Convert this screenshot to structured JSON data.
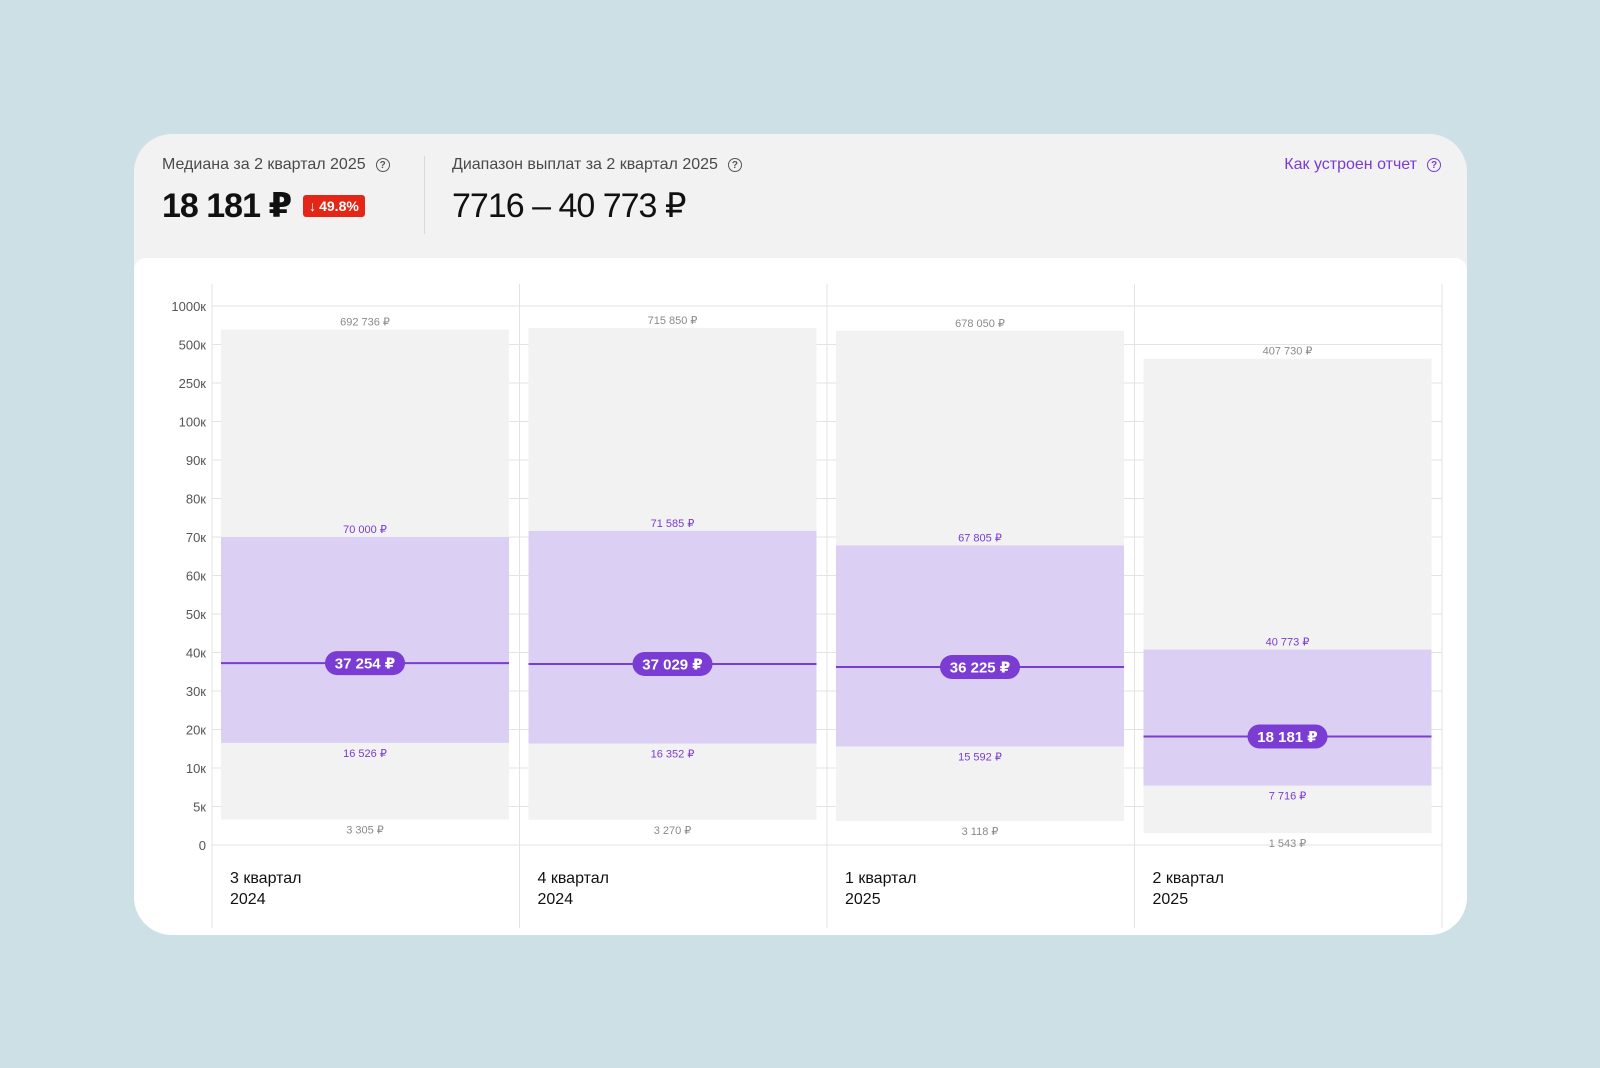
{
  "header": {
    "median_label": "Медиана за 2 квартал 2025",
    "median_value": "18 181 ₽",
    "median_change": "49.8%",
    "change_direction_icon": "arrow-down-icon",
    "range_label": "Диапазон выплат за 2 квартал 2025",
    "range_value": "7716 – 40 773 ₽",
    "help_link": "Как устроен отчет"
  },
  "colors": {
    "background": "#cce0e6",
    "accent": "#7a3cd2",
    "badge_negative": "#e42617",
    "interquartile_fill": "#dccff4",
    "full_range_fill": "#f2f2f2"
  },
  "chart_data": {
    "type": "range-bar",
    "y_scale": "piecewise",
    "y_ticks": [
      {
        "label": "0",
        "value": 0
      },
      {
        "label": "5к",
        "value": 5000
      },
      {
        "label": "10к",
        "value": 10000
      },
      {
        "label": "20к",
        "value": 20000
      },
      {
        "label": "30к",
        "value": 30000
      },
      {
        "label": "40к",
        "value": 40000
      },
      {
        "label": "50к",
        "value": 50000
      },
      {
        "label": "60к",
        "value": 60000
      },
      {
        "label": "70к",
        "value": 70000
      },
      {
        "label": "80к",
        "value": 80000
      },
      {
        "label": "90к",
        "value": 90000
      },
      {
        "label": "100к",
        "value": 100000
      },
      {
        "label": "250к",
        "value": 250000
      },
      {
        "label": "500к",
        "value": 500000
      },
      {
        "label": "1000к",
        "value": 1000000
      }
    ],
    "grid": true,
    "categories": [
      {
        "label_line1": "3 квартал",
        "label_line2": "2024",
        "min": 3305,
        "q1": 16526,
        "median": 37254,
        "q3": 70000,
        "max": 692736,
        "min_label": "3 305 ₽",
        "q1_label": "16 526 ₽",
        "median_label": "37 254 ₽",
        "q3_label": "70 000 ₽",
        "max_label": "692 736 ₽"
      },
      {
        "label_line1": "4 квартал",
        "label_line2": "2024",
        "min": 3270,
        "q1": 16352,
        "median": 37029,
        "q3": 71585,
        "max": 715850,
        "min_label": "3 270 ₽",
        "q1_label": "16 352 ₽",
        "median_label": "37 029 ₽",
        "q3_label": "71 585 ₽",
        "max_label": "715 850 ₽"
      },
      {
        "label_line1": "1 квартал",
        "label_line2": "2025",
        "min": 3118,
        "q1": 15592,
        "median": 36225,
        "q3": 67805,
        "max": 678050,
        "min_label": "3 118 ₽",
        "q1_label": "15 592 ₽",
        "median_label": "36 225 ₽",
        "q3_label": "67 805 ₽",
        "max_label": "678 050 ₽"
      },
      {
        "label_line1": "2 квартал",
        "label_line2": "2025",
        "min": 1543,
        "q1": 7716,
        "median": 18181,
        "q3": 40773,
        "max": 407730,
        "min_label": "1 543 ₽",
        "q1_label": "7 716 ₽",
        "median_label": "18 181 ₽",
        "q3_label": "40 773 ₽",
        "max_label": "407 730 ₽"
      }
    ]
  }
}
